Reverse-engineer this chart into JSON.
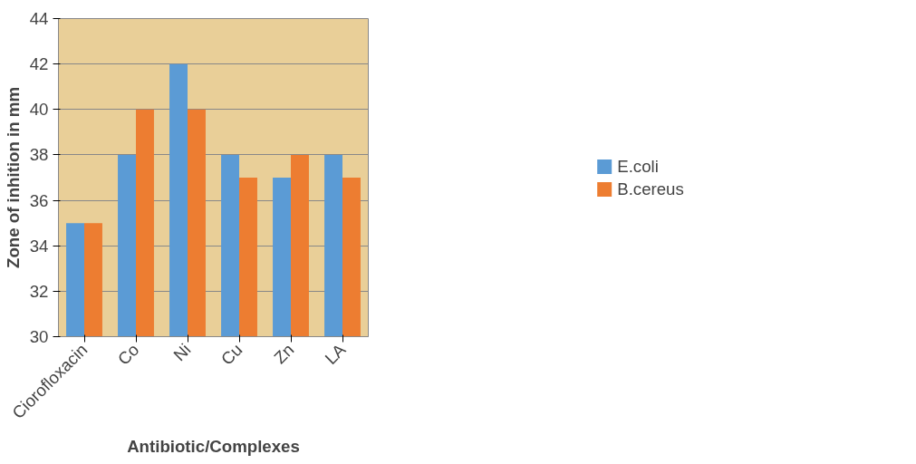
{
  "chart_data": {
    "type": "bar",
    "xlabel": "Antibiotic/Complexes",
    "ylabel": "Zone of inhition in mm",
    "categories": [
      "Ciorofloxacin",
      "Co",
      "Ni",
      "Cu",
      "Zn",
      "LA"
    ],
    "series": [
      {
        "name": "E.coli",
        "color": "#5b9bd5",
        "values": [
          35,
          38,
          42,
          38,
          37,
          38
        ]
      },
      {
        "name": "B.cereus",
        "color": "#ed7d31",
        "values": [
          35,
          40,
          40,
          37,
          38,
          37
        ]
      }
    ],
    "ylim": [
      30,
      44
    ],
    "yticks": [
      30,
      32,
      34,
      36,
      38,
      40,
      42,
      44
    ],
    "grid": "y",
    "legend": "right"
  }
}
